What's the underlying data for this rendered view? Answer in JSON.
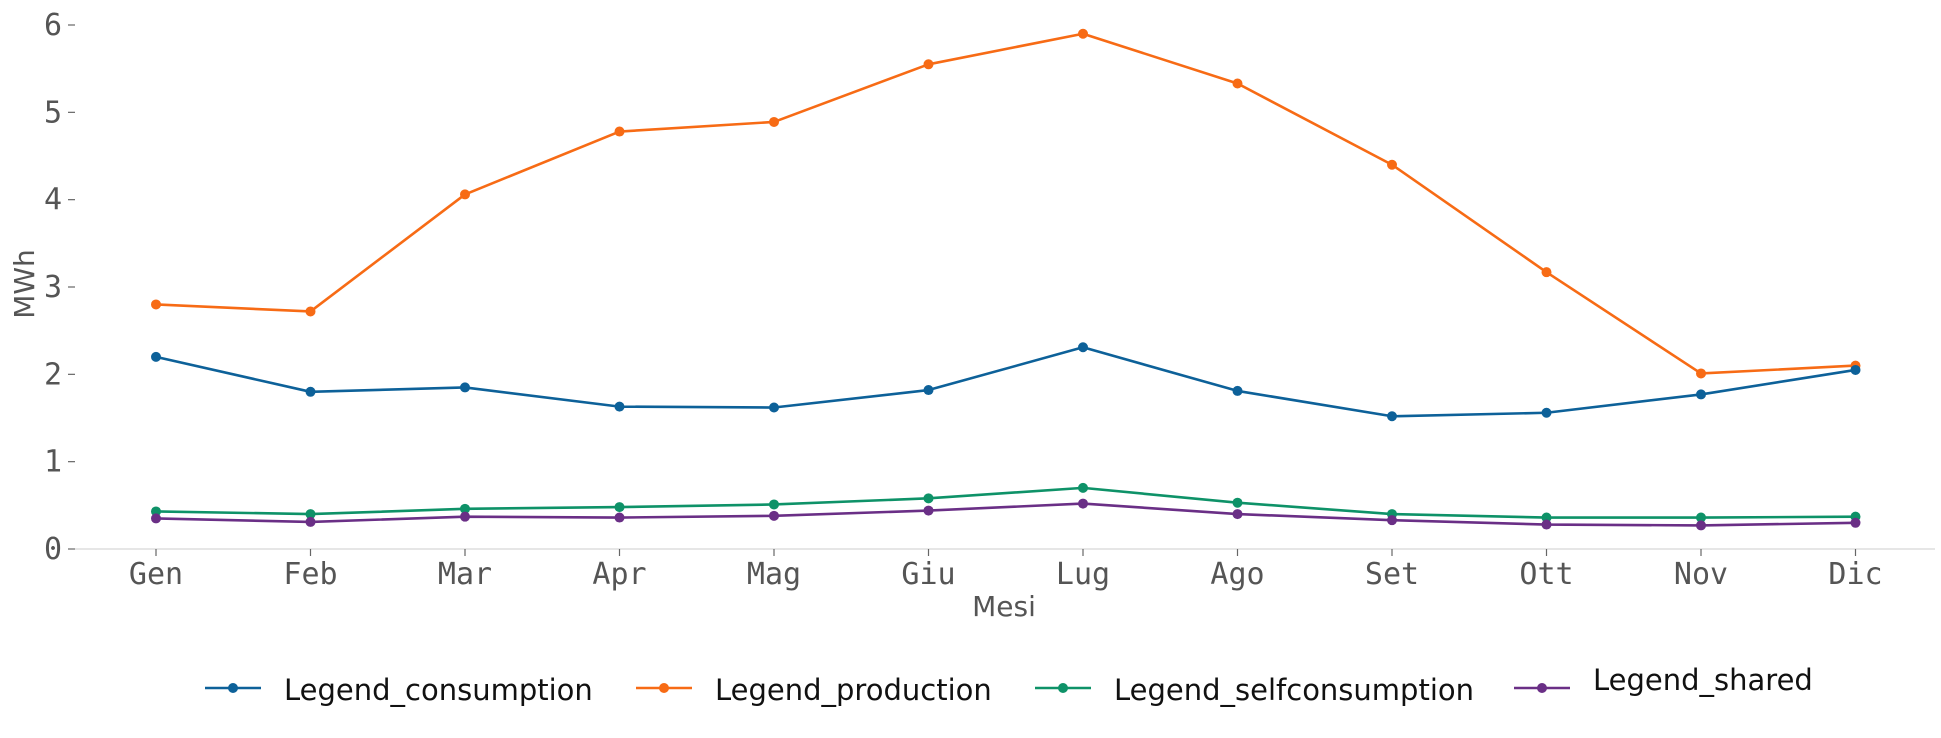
{
  "chart_data": {
    "type": "line",
    "categories": [
      "Gen",
      "Feb",
      "Mar",
      "Apr",
      "Mag",
      "Giu",
      "Lug",
      "Ago",
      "Set",
      "Ott",
      "Nov",
      "Dic"
    ],
    "xlabel": "Mesi",
    "ylabel": "MWh",
    "ylim": [
      0,
      6
    ],
    "yticks": [
      "0",
      "1",
      "2",
      "3",
      "4",
      "5",
      "6"
    ],
    "grid": false,
    "legend_position": "bottom",
    "series": [
      {
        "name": "Legend_consumption",
        "color": "#0d6199",
        "values": [
          2.2,
          1.8,
          1.85,
          1.63,
          1.62,
          1.82,
          2.31,
          1.81,
          1.52,
          1.56,
          1.77,
          2.05
        ]
      },
      {
        "name": "Legend_production",
        "color": "#f76b15",
        "values": [
          2.8,
          2.72,
          4.06,
          4.78,
          4.89,
          5.55,
          5.9,
          5.33,
          4.4,
          3.17,
          2.01,
          2.1
        ]
      },
      {
        "name": "Legend_selfconsumption",
        "color": "#0e9268",
        "values": [
          0.43,
          0.4,
          0.46,
          0.48,
          0.51,
          0.58,
          0.7,
          0.53,
          0.4,
          0.36,
          0.36,
          0.37
        ]
      },
      {
        "name": "Legend_shared",
        "color": "#6a2f86",
        "values": [
          0.35,
          0.31,
          0.37,
          0.36,
          0.38,
          0.44,
          0.52,
          0.4,
          0.33,
          0.28,
          0.27,
          0.3
        ]
      }
    ]
  }
}
